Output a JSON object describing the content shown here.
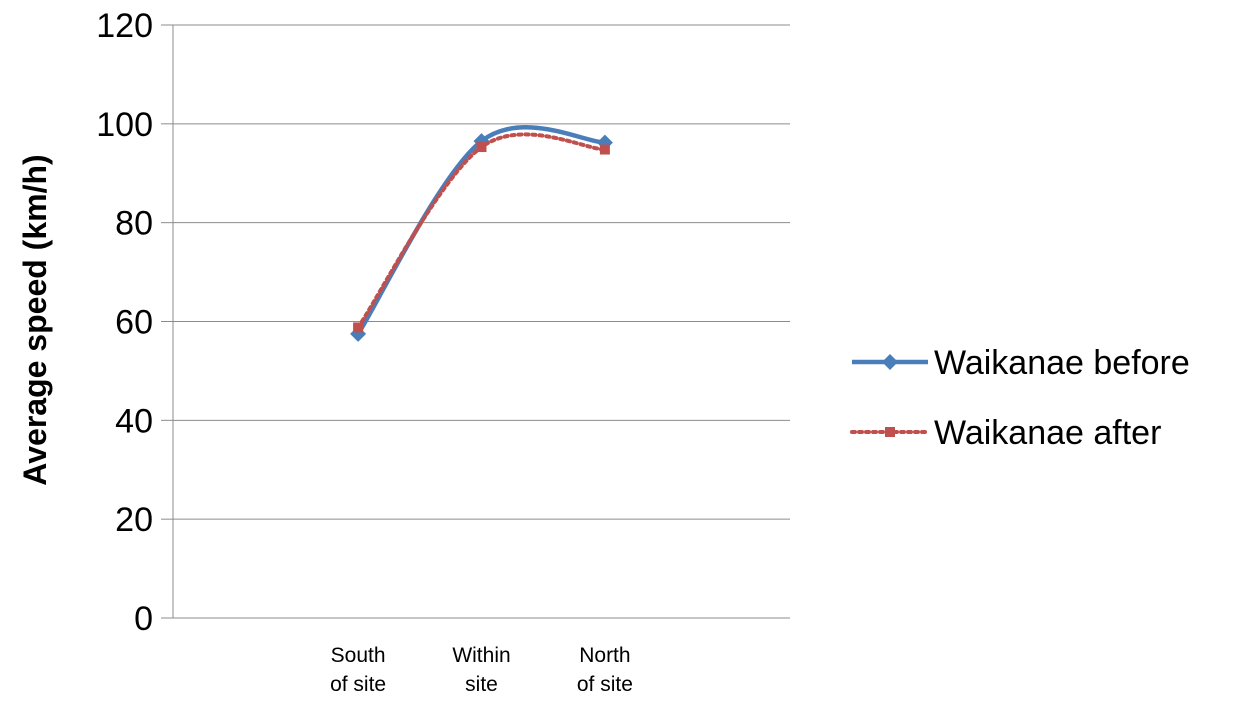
{
  "chart_data": {
    "type": "line",
    "title": "",
    "xlabel": "",
    "ylabel": "Average speed (km/h)",
    "ylim": [
      0,
      120
    ],
    "yticks": [
      "0",
      "20",
      "40",
      "60",
      "80",
      "100",
      "120"
    ],
    "categories": [
      [
        "South",
        "of site"
      ],
      [
        "Within",
        "site"
      ],
      [
        "North",
        "of site"
      ]
    ],
    "grid": true,
    "smoothed": true,
    "legend_position": "right",
    "series": [
      {
        "name": "Waikanae before",
        "values": [
          57.5,
          96.5,
          96.2
        ],
        "color": "#4a7ebb",
        "line_style": "solid",
        "marker": "diamond"
      },
      {
        "name": "Waikanae after",
        "values": [
          58.8,
          95.3,
          94.8
        ],
        "color": "#c0504d",
        "line_style": "dotted",
        "marker": "square"
      }
    ]
  }
}
